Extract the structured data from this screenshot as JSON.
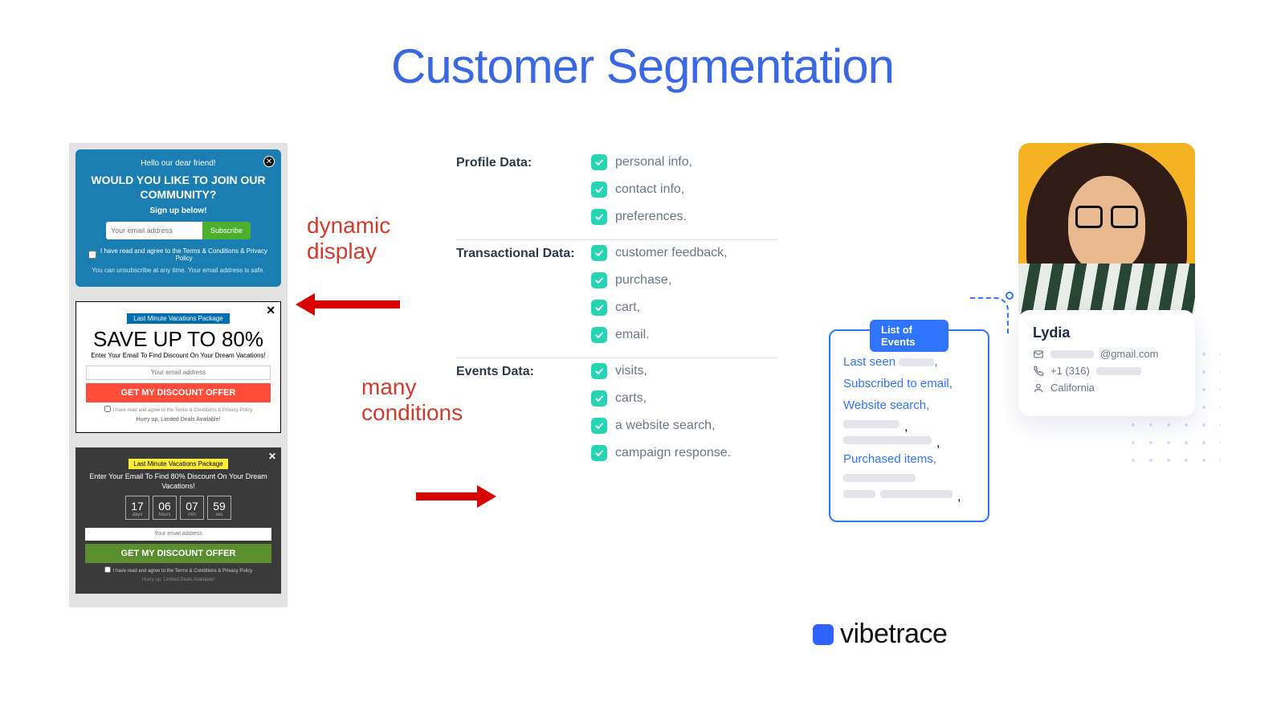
{
  "title": "Customer Segmentation",
  "annotations": {
    "dynamic": "dynamic\ndisplay",
    "conditions": "many\nconditions"
  },
  "popups": {
    "p1": {
      "greet": "Hello our dear friend!",
      "head": "WOULD YOU LIKE TO JOIN OUR COMMUNITY?",
      "sub": "Sign up below!",
      "placeholder": "Your email address",
      "button": "Subscribe",
      "terms": "I have read and agree to the Terms & Conditions & Privacy Policy",
      "foot": "You can unsubscribe at any time. Your email address is safe."
    },
    "p2": {
      "tag": "Last Minute Vacations Package",
      "head": "SAVE UP TO 80%",
      "sub": "Enter Your Email To Find Discount On Your Dream Vacations!",
      "placeholder": "Your email address",
      "button": "GET MY DISCOUNT OFFER",
      "terms": "I have read and agree to the Terms & Conditions & Privacy Policy",
      "foot": "Hurry up, Limited Deals Available!"
    },
    "p3": {
      "tag": "Last Minute Vacations Package",
      "sub": "Enter Your Email To Find 80% Discount On Your Dream Vacations!",
      "timer": [
        {
          "n": "17",
          "l": "days"
        },
        {
          "n": "06",
          "l": "hours"
        },
        {
          "n": "07",
          "l": "min"
        },
        {
          "n": "59",
          "l": "sec"
        }
      ],
      "placeholder": "Your email address",
      "button": "GET MY DISCOUNT OFFER",
      "terms": "I have read and agree to the Terms & Conditions & Privacy Policy",
      "foot": "Hurry up, Limited Deals Available!"
    }
  },
  "categories": [
    {
      "label": "Profile Data:",
      "items": [
        "personal info,",
        "contact info,",
        "preferences."
      ]
    },
    {
      "label": "Transactional Data:",
      "items": [
        "customer feedback,",
        "purchase,",
        "cart,",
        "email."
      ]
    },
    {
      "label": "Events Data:",
      "items": [
        "visits,",
        "carts,",
        "a website search,",
        "campaign response."
      ]
    }
  ],
  "events": {
    "badge": "List of Events",
    "lines": [
      "Last seen",
      "Subscribed to email,",
      "Website search,",
      "Purchased items,"
    ]
  },
  "profile": {
    "name": "Lydia",
    "emailSuffix": "@gmail.com",
    "phonePrefix": "+1 (316)",
    "location": "California"
  },
  "brand": "vibetrace",
  "colors": {
    "title": "#3a67e2",
    "anno": "#d23a2a",
    "arrow": "#d90000",
    "check": "#26d4b4",
    "blue": "#2f74ff"
  }
}
